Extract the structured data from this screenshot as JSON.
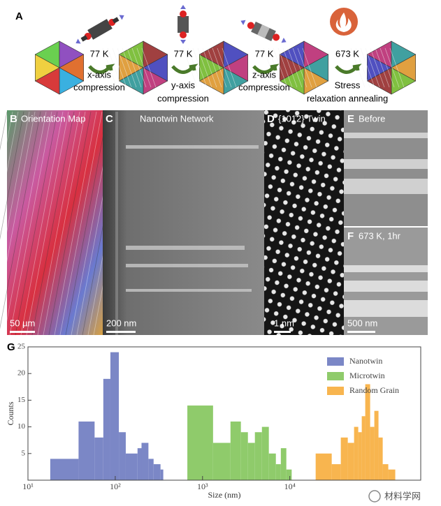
{
  "panel_a": {
    "label": "A",
    "steps": [
      {
        "temp": "77 K",
        "line1": "x-axis",
        "line2": "compression"
      },
      {
        "temp": "77 K",
        "line1": "y-axis",
        "line2": "compression"
      },
      {
        "temp": "77 K",
        "line1": "z-axis",
        "line2": "compression"
      },
      {
        "temp": "673 K",
        "line1": "Stress",
        "line2": "relaxation annealing"
      }
    ]
  },
  "panels": [
    {
      "label": "B",
      "title": "Orientation Map",
      "scale": "50 µm"
    },
    {
      "label": "C",
      "title": "Nanotwin Network",
      "scale": "200 nm"
    },
    {
      "label": "D",
      "title": "{101̄2} Twin",
      "scale": "1 nm"
    },
    {
      "label": "E",
      "title": "Before",
      "scale": "500 nm"
    },
    {
      "label": "F",
      "title": "673 K, 1hr"
    }
  ],
  "chart_data": {
    "type": "histogram",
    "label": "G",
    "x_label": "Size (nm)",
    "y_label": "Counts",
    "log_x": true,
    "xlim": [
      10,
      316000
    ],
    "ylim": [
      0,
      25
    ],
    "xticks": [
      {
        "value": 10,
        "label": "10¹"
      },
      {
        "value": 100,
        "label": "10²"
      },
      {
        "value": 1000,
        "label": "10³"
      },
      {
        "value": 10000,
        "label": "10⁴"
      }
    ],
    "yticks": [
      5,
      10,
      15,
      20,
      25
    ],
    "legend": "upper right",
    "series": [
      {
        "name": "Nanotwin",
        "color": "#7b87c6",
        "bins": [
          18,
          38,
          58,
          73,
          88,
          110,
          132,
          180,
          200,
          240,
          275,
          330,
          355
        ],
        "values": [
          4,
          11,
          8,
          19,
          24,
          9,
          5,
          6,
          7,
          4,
          3,
          2
        ]
      },
      {
        "name": "Microtwin",
        "color": "#8fcb6b",
        "bins": [
          670,
          1320,
          2090,
          2750,
          3310,
          3980,
          4790,
          5750,
          6920,
          7890,
          9120,
          10500
        ],
        "values": [
          14,
          7,
          11,
          9,
          7,
          9,
          10,
          5,
          3,
          6,
          2
        ]
      },
      {
        "name": "Random Grain",
        "color": "#f8b54f",
        "bins": [
          19770,
          30200,
          38370,
          46130,
          54450,
          60810,
          66680,
          73110,
          83180,
          92900,
          103700,
          115900,
          134300,
          161400
        ],
        "values": [
          5,
          3,
          8,
          7,
          10,
          9,
          12,
          18,
          10,
          13,
          8,
          3,
          2
        ]
      }
    ]
  },
  "watermark": "材料学网"
}
